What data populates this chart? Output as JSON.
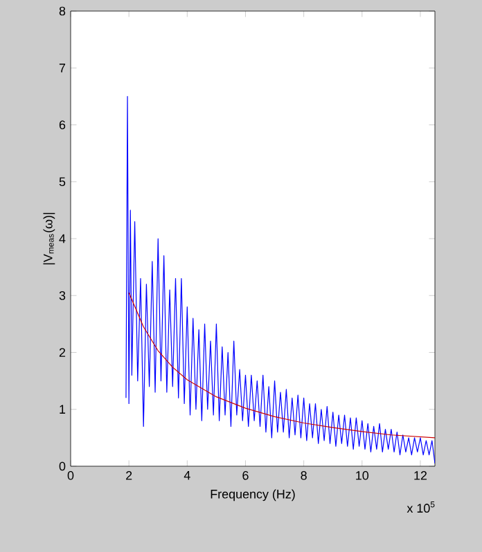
{
  "chart_data": {
    "type": "line",
    "xlabel": "Frequency (Hz)",
    "ylabel": "|V$_{meas}$(ω)|",
    "annotations": [
      "x 10$^{5}$"
    ],
    "xlim": [
      0,
      12.5
    ],
    "xticks": [
      0,
      2,
      4,
      6,
      8,
      10,
      12
    ],
    "ylim": [
      0,
      8
    ],
    "yticks": [
      0,
      1,
      2,
      3,
      4,
      5,
      6,
      7,
      8
    ],
    "grid": false,
    "marker": "none",
    "line_style": "solid",
    "series": [
      {
        "color": "#0000ff",
        "x": [
          1.9,
          1.95,
          2.0,
          2.05,
          2.1,
          2.2,
          2.3,
          2.4,
          2.5,
          2.6,
          2.7,
          2.8,
          2.9,
          3.0,
          3.1,
          3.2,
          3.3,
          3.4,
          3.5,
          3.6,
          3.7,
          3.8,
          3.9,
          4.0,
          4.1,
          4.2,
          4.3,
          4.4,
          4.5,
          4.6,
          4.7,
          4.8,
          4.9,
          5.0,
          5.1,
          5.2,
          5.3,
          5.4,
          5.5,
          5.6,
          5.7,
          5.8,
          5.9,
          6.0,
          6.1,
          6.2,
          6.3,
          6.4,
          6.5,
          6.6,
          6.7,
          6.8,
          6.9,
          7.0,
          7.1,
          7.2,
          7.3,
          7.4,
          7.5,
          7.6,
          7.7,
          7.8,
          7.9,
          8.0,
          8.1,
          8.2,
          8.3,
          8.4,
          8.5,
          8.6,
          8.7,
          8.8,
          8.9,
          9.0,
          9.1,
          9.2,
          9.3,
          9.4,
          9.5,
          9.6,
          9.7,
          9.8,
          9.9,
          10.0,
          10.1,
          10.2,
          10.3,
          10.4,
          10.5,
          10.6,
          10.7,
          10.8,
          10.9,
          11.0,
          11.1,
          11.2,
          11.3,
          11.4,
          11.5,
          11.6,
          11.7,
          11.8,
          11.9,
          12.0,
          12.1,
          12.2,
          12.3,
          12.4,
          12.5
        ],
        "values": [
          1.2,
          6.5,
          1.1,
          4.5,
          1.6,
          4.3,
          1.5,
          3.3,
          0.7,
          3.2,
          1.4,
          3.6,
          1.3,
          4.0,
          1.5,
          3.7,
          1.3,
          3.1,
          1.4,
          3.3,
          1.2,
          3.3,
          1.1,
          2.8,
          0.9,
          2.6,
          1.0,
          2.4,
          0.8,
          2.5,
          1.0,
          2.2,
          0.9,
          2.5,
          0.8,
          2.1,
          0.9,
          2.0,
          0.7,
          2.2,
          0.9,
          1.7,
          0.8,
          1.6,
          0.7,
          1.6,
          0.8,
          1.5,
          0.7,
          1.6,
          0.6,
          1.4,
          0.5,
          1.5,
          0.6,
          1.3,
          0.6,
          1.35,
          0.5,
          1.2,
          0.55,
          1.25,
          0.5,
          1.2,
          0.45,
          1.1,
          0.5,
          1.1,
          0.4,
          1.0,
          0.45,
          1.05,
          0.4,
          0.95,
          0.35,
          0.9,
          0.4,
          0.9,
          0.35,
          0.85,
          0.3,
          0.85,
          0.35,
          0.8,
          0.3,
          0.75,
          0.25,
          0.7,
          0.3,
          0.75,
          0.25,
          0.65,
          0.3,
          0.65,
          0.25,
          0.6,
          0.2,
          0.55,
          0.25,
          0.5,
          0.2,
          0.5,
          0.25,
          0.5,
          0.2,
          0.45,
          0.2,
          0.45,
          0.05
        ]
      },
      {
        "color": "#cc0000",
        "x": [
          2,
          2.5,
          3,
          3.5,
          4,
          5,
          6,
          7,
          8,
          9,
          10,
          11,
          12.5
        ],
        "values": [
          3.05,
          2.45,
          2.03,
          1.74,
          1.52,
          1.22,
          1.02,
          0.87,
          0.76,
          0.68,
          0.61,
          0.55,
          0.5
        ]
      }
    ]
  }
}
